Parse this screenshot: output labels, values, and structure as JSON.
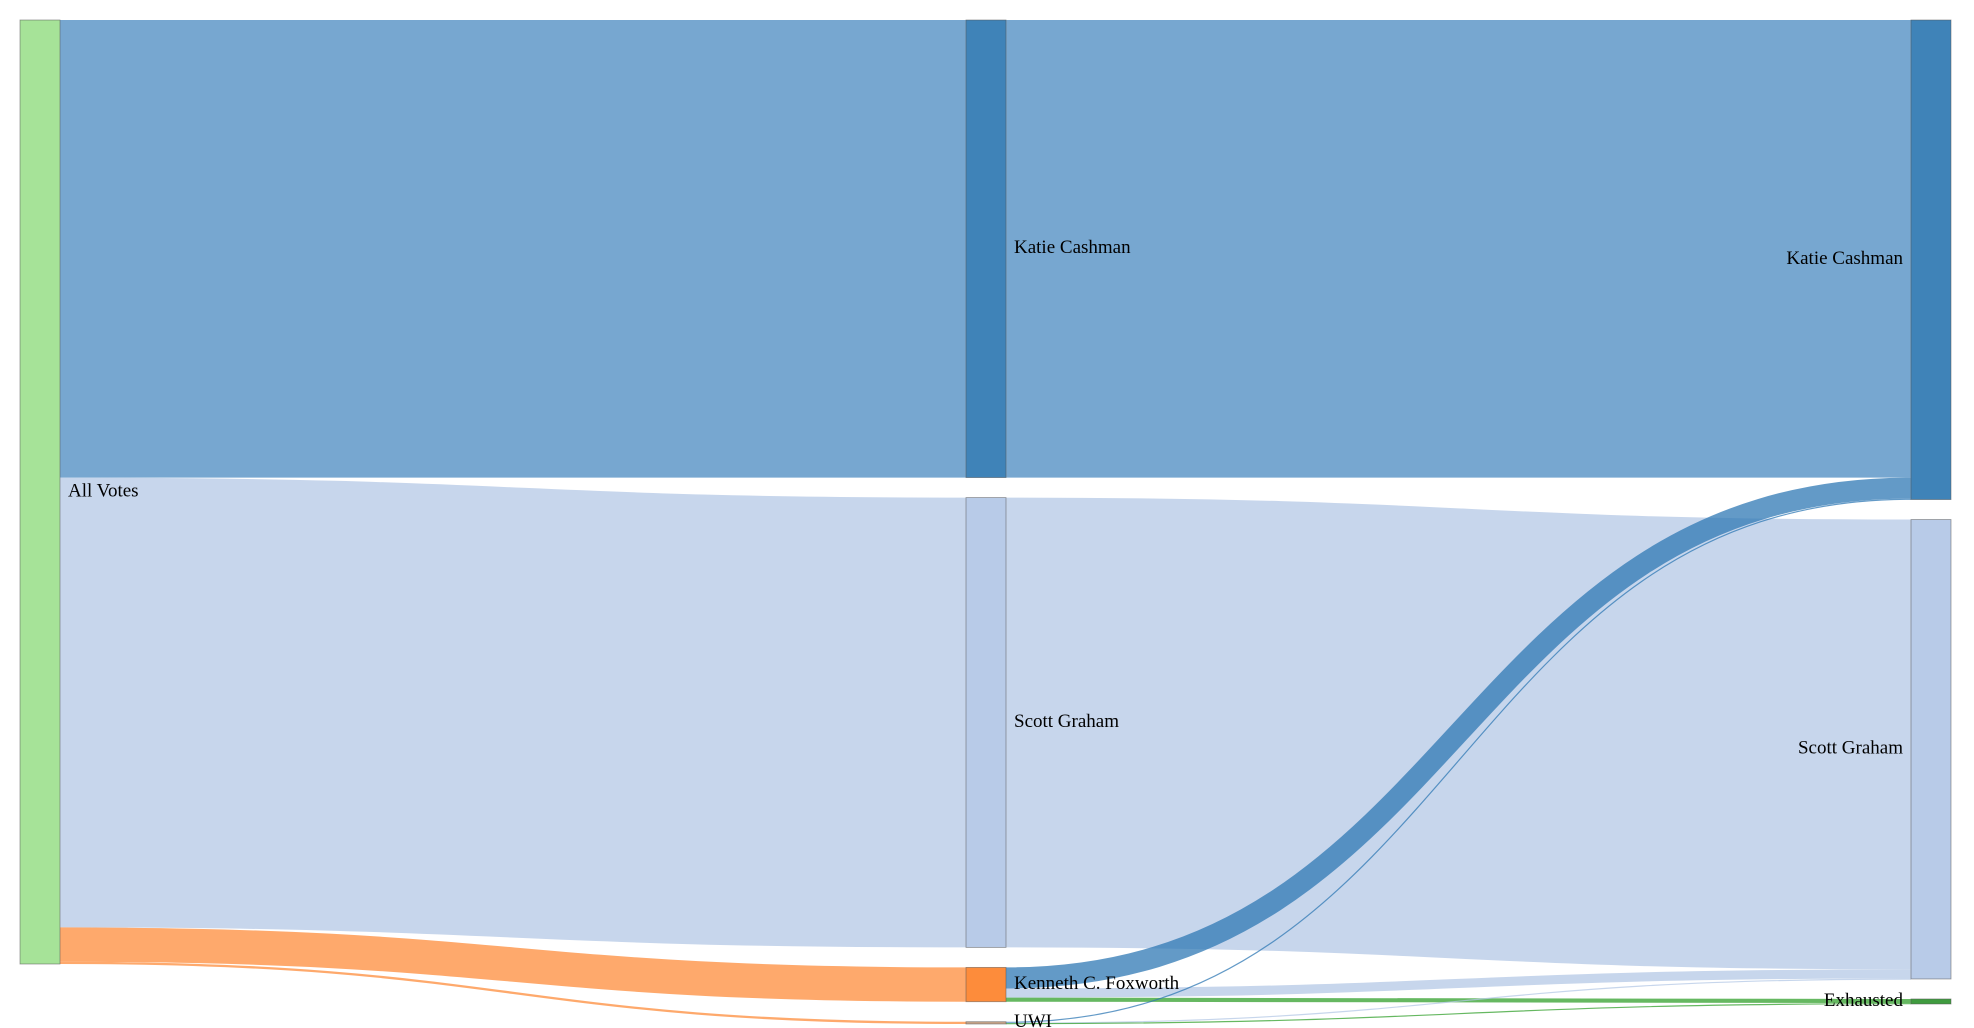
{
  "chart_data": {
    "type": "sankey",
    "title": "",
    "columns": [
      {
        "round": 1,
        "nodes": [
          {
            "id": "all",
            "label": "All Votes",
            "color": "#a6e398"
          }
        ]
      },
      {
        "round": 2,
        "nodes": [
          {
            "id": "kc1",
            "label": "Katie Cashman",
            "color": "#3f83b8"
          },
          {
            "id": "sg1",
            "label": "Scott Graham",
            "color": "#b8cbe8"
          },
          {
            "id": "kf1",
            "label": "Kenneth C. Foxworth",
            "color": "#fd8c3b"
          },
          {
            "id": "uwi1",
            "label": "UWI",
            "color": "#c9a58a"
          }
        ]
      },
      {
        "round": 3,
        "nodes": [
          {
            "id": "kc2",
            "label": "Katie Cashman",
            "color": "#3f83b8"
          },
          {
            "id": "sg2",
            "label": "Scott Graham",
            "color": "#b8cbe8"
          },
          {
            "id": "ex2",
            "label": "Exhausted",
            "color": "#3f9b3f"
          }
        ]
      }
    ],
    "links": [
      {
        "source": "all",
        "target": "kc1",
        "value": 1000,
        "color": "#4a8ac0"
      },
      {
        "source": "all",
        "target": "sg1",
        "value": 983,
        "color": "#b4c8e6"
      },
      {
        "source": "all",
        "target": "kf1",
        "value": 75,
        "color": "#fd8c3b"
      },
      {
        "source": "all",
        "target": "uwi1",
        "value": 5,
        "color": "#fd8c3b"
      },
      {
        "source": "kc1",
        "target": "kc2",
        "value": 1000,
        "color": "#4a8ac0"
      },
      {
        "source": "sg1",
        "target": "sg2",
        "value": 983,
        "color": "#b4c8e6"
      },
      {
        "source": "kf1",
        "target": "kc2",
        "value": 46,
        "color": "#2f78b4"
      },
      {
        "source": "kf1",
        "target": "sg2",
        "value": 20,
        "color": "#b4c8e6"
      },
      {
        "source": "kf1",
        "target": "ex2",
        "value": 9,
        "color": "#33a02c"
      },
      {
        "source": "uwi1",
        "target": "kc2",
        "value": 2,
        "color": "#2f78b4"
      },
      {
        "source": "uwi1",
        "target": "sg2",
        "value": 1,
        "color": "#b4c8e6"
      },
      {
        "source": "uwi1",
        "target": "ex2",
        "value": 2,
        "color": "#33a02c"
      }
    ]
  }
}
